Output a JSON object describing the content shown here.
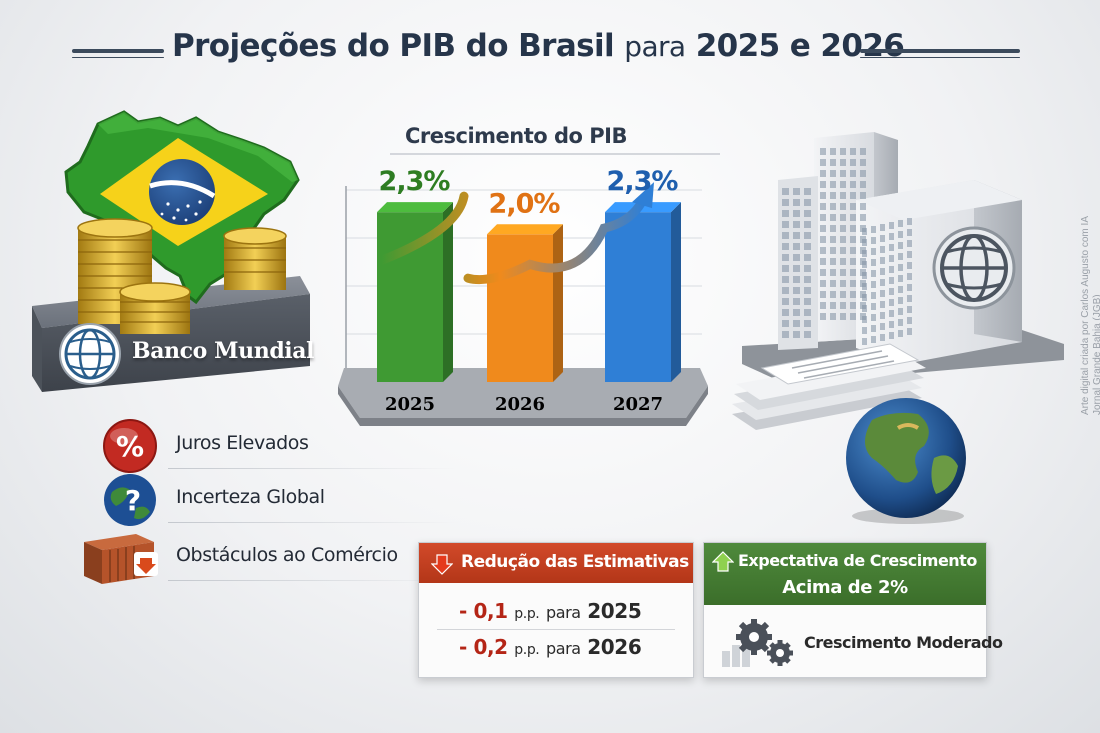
{
  "title": {
    "part1": "Projeções do PIB do Brasil",
    "part2": "para",
    "part3": "2025 e 2026"
  },
  "bank_label": "Banco Mundial",
  "chart_data": {
    "type": "bar",
    "title": "Crescimento do PIB",
    "categories": [
      "2025",
      "2026",
      "2027"
    ],
    "values": [
      2.3,
      2.0,
      2.3
    ],
    "value_labels": [
      "2,3%",
      "2,0%",
      "2,3%"
    ],
    "unit": "%",
    "colors": [
      "#3f9a33",
      "#f08a1c",
      "#2f7fd6"
    ],
    "value_label_colors": [
      "#2e7d22",
      "#e07214",
      "#1f5fae"
    ],
    "ylim": [
      0,
      2.6
    ],
    "grid": true,
    "trend_arrow": true,
    "xlabel": "",
    "ylabel": ""
  },
  "risks": [
    {
      "icon": "percent-icon",
      "label": "Juros Elevados"
    },
    {
      "icon": "globe-question-icon",
      "label": "Incerteza Global"
    },
    {
      "icon": "container-icon",
      "label": "Obstáculos ao Comércio"
    }
  ],
  "reduction_box": {
    "header": "Redução das Estimativas",
    "lines": [
      {
        "value": "- 0,1",
        "unit": "p.p.",
        "para": "para",
        "year": "2025"
      },
      {
        "value": "- 0,2",
        "unit": "p.p.",
        "para": "para",
        "year": "2026"
      }
    ]
  },
  "expectation_box": {
    "header_line1": "Expectativa de Crescimento",
    "header_line2": "Acima de 2%",
    "footer": "Crescimento Moderado"
  },
  "credit": {
    "line1": "Arte digital criada por Carlos Augusto com IA",
    "line2": "Jornal Grande Bahia (JGB)"
  },
  "colors": {
    "title": "#26354a",
    "reduction_header": "#c2401f",
    "expectation_header": "#467d33",
    "negative": "#b42516"
  }
}
